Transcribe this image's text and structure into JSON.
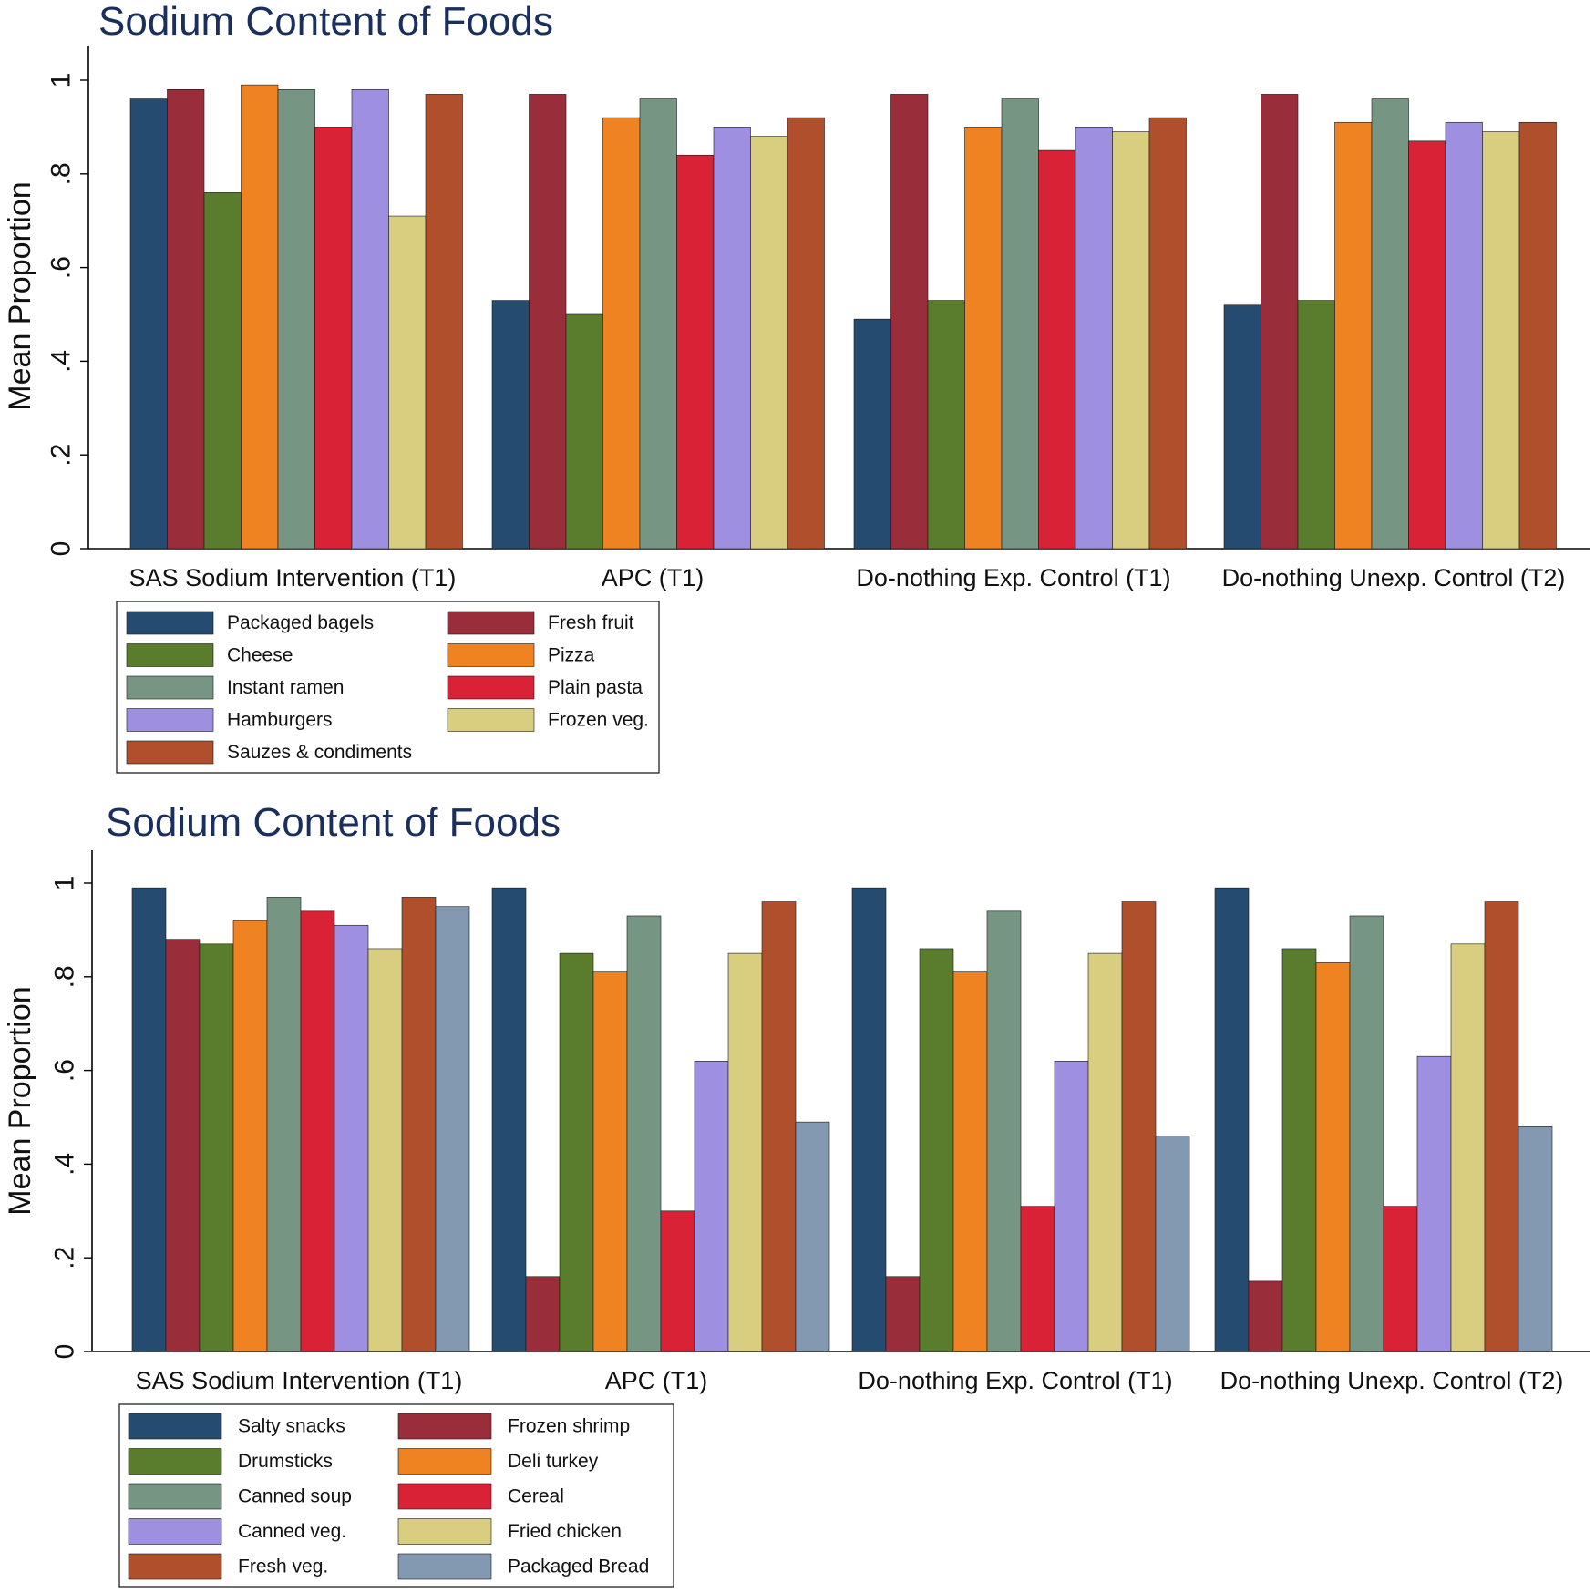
{
  "chart_data": [
    {
      "type": "bar",
      "title": "Sodium Content of Foods",
      "ylabel": "Mean Proportion",
      "xlabel": "",
      "ylim": [
        0,
        1.05
      ],
      "yticks": [
        "0",
        ".2",
        ".4",
        ".6",
        ".8",
        "1"
      ],
      "categories": [
        "SAS Sodium Intervention (T1)",
        "APC (T1)",
        "Do-nothing Exp. Control (T1)",
        "Do-nothing Unexp. Control (T2)"
      ],
      "legend_position": "bottom-left",
      "series": [
        {
          "name": "Packaged bagels",
          "color": "#264b70",
          "values": [
            0.96,
            0.53,
            0.49,
            0.52
          ]
        },
        {
          "name": "Fresh fruit",
          "color": "#992e3a",
          "values": [
            0.98,
            0.97,
            0.97,
            0.97
          ]
        },
        {
          "name": "Cheese",
          "color": "#5a7c2d",
          "values": [
            0.76,
            0.5,
            0.53,
            0.53
          ]
        },
        {
          "name": "Pizza",
          "color": "#ef8221",
          "values": [
            0.99,
            0.92,
            0.9,
            0.91
          ]
        },
        {
          "name": "Instant ramen",
          "color": "#769683",
          "values": [
            0.98,
            0.96,
            0.96,
            0.96
          ]
        },
        {
          "name": "Plain pasta",
          "color": "#d92236",
          "values": [
            0.9,
            0.84,
            0.85,
            0.87
          ]
        },
        {
          "name": "Hamburgers",
          "color": "#9e8fe0",
          "values": [
            0.98,
            0.9,
            0.9,
            0.91
          ]
        },
        {
          "name": "Frozen veg.",
          "color": "#d9cd7f",
          "values": [
            0.71,
            0.88,
            0.89,
            0.89
          ]
        },
        {
          "name": "Sauzes & condiments",
          "color": "#b04f2c",
          "values": [
            0.97,
            0.92,
            0.92,
            0.91
          ]
        }
      ]
    },
    {
      "type": "bar",
      "title": "Sodium Content of Foods",
      "ylabel": "Mean Proportion",
      "xlabel": "",
      "ylim": [
        0,
        1.05
      ],
      "yticks": [
        "0",
        ".2",
        ".4",
        ".6",
        ".8",
        "1"
      ],
      "categories": [
        "SAS Sodium Intervention (T1)",
        "APC (T1)",
        "Do-nothing Exp. Control (T1)",
        "Do-nothing Unexp. Control (T2)"
      ],
      "legend_position": "bottom-left",
      "series": [
        {
          "name": "Salty snacks",
          "color": "#264b70",
          "values": [
            0.99,
            0.99,
            0.99,
            0.99
          ]
        },
        {
          "name": "Frozen shrimp",
          "color": "#992e3a",
          "values": [
            0.88,
            0.16,
            0.16,
            0.15
          ]
        },
        {
          "name": "Drumsticks",
          "color": "#5a7c2d",
          "values": [
            0.87,
            0.85,
            0.86,
            0.86
          ]
        },
        {
          "name": "Deli turkey",
          "color": "#ef8221",
          "values": [
            0.92,
            0.81,
            0.81,
            0.83
          ]
        },
        {
          "name": "Canned soup",
          "color": "#769683",
          "values": [
            0.97,
            0.93,
            0.94,
            0.93
          ]
        },
        {
          "name": "Cereal",
          "color": "#d92236",
          "values": [
            0.94,
            0.3,
            0.31,
            0.31
          ]
        },
        {
          "name": "Canned veg.",
          "color": "#9e8fe0",
          "values": [
            0.91,
            0.62,
            0.62,
            0.63
          ]
        },
        {
          "name": "Fried chicken",
          "color": "#d9cd7f",
          "values": [
            0.86,
            0.85,
            0.85,
            0.87
          ]
        },
        {
          "name": "Fresh veg.",
          "color": "#b04f2c",
          "values": [
            0.97,
            0.96,
            0.96,
            0.96
          ]
        },
        {
          "name": "Packaged Bread",
          "color": "#8299b1",
          "values": [
            0.95,
            0.49,
            0.46,
            0.48
          ]
        }
      ]
    }
  ]
}
